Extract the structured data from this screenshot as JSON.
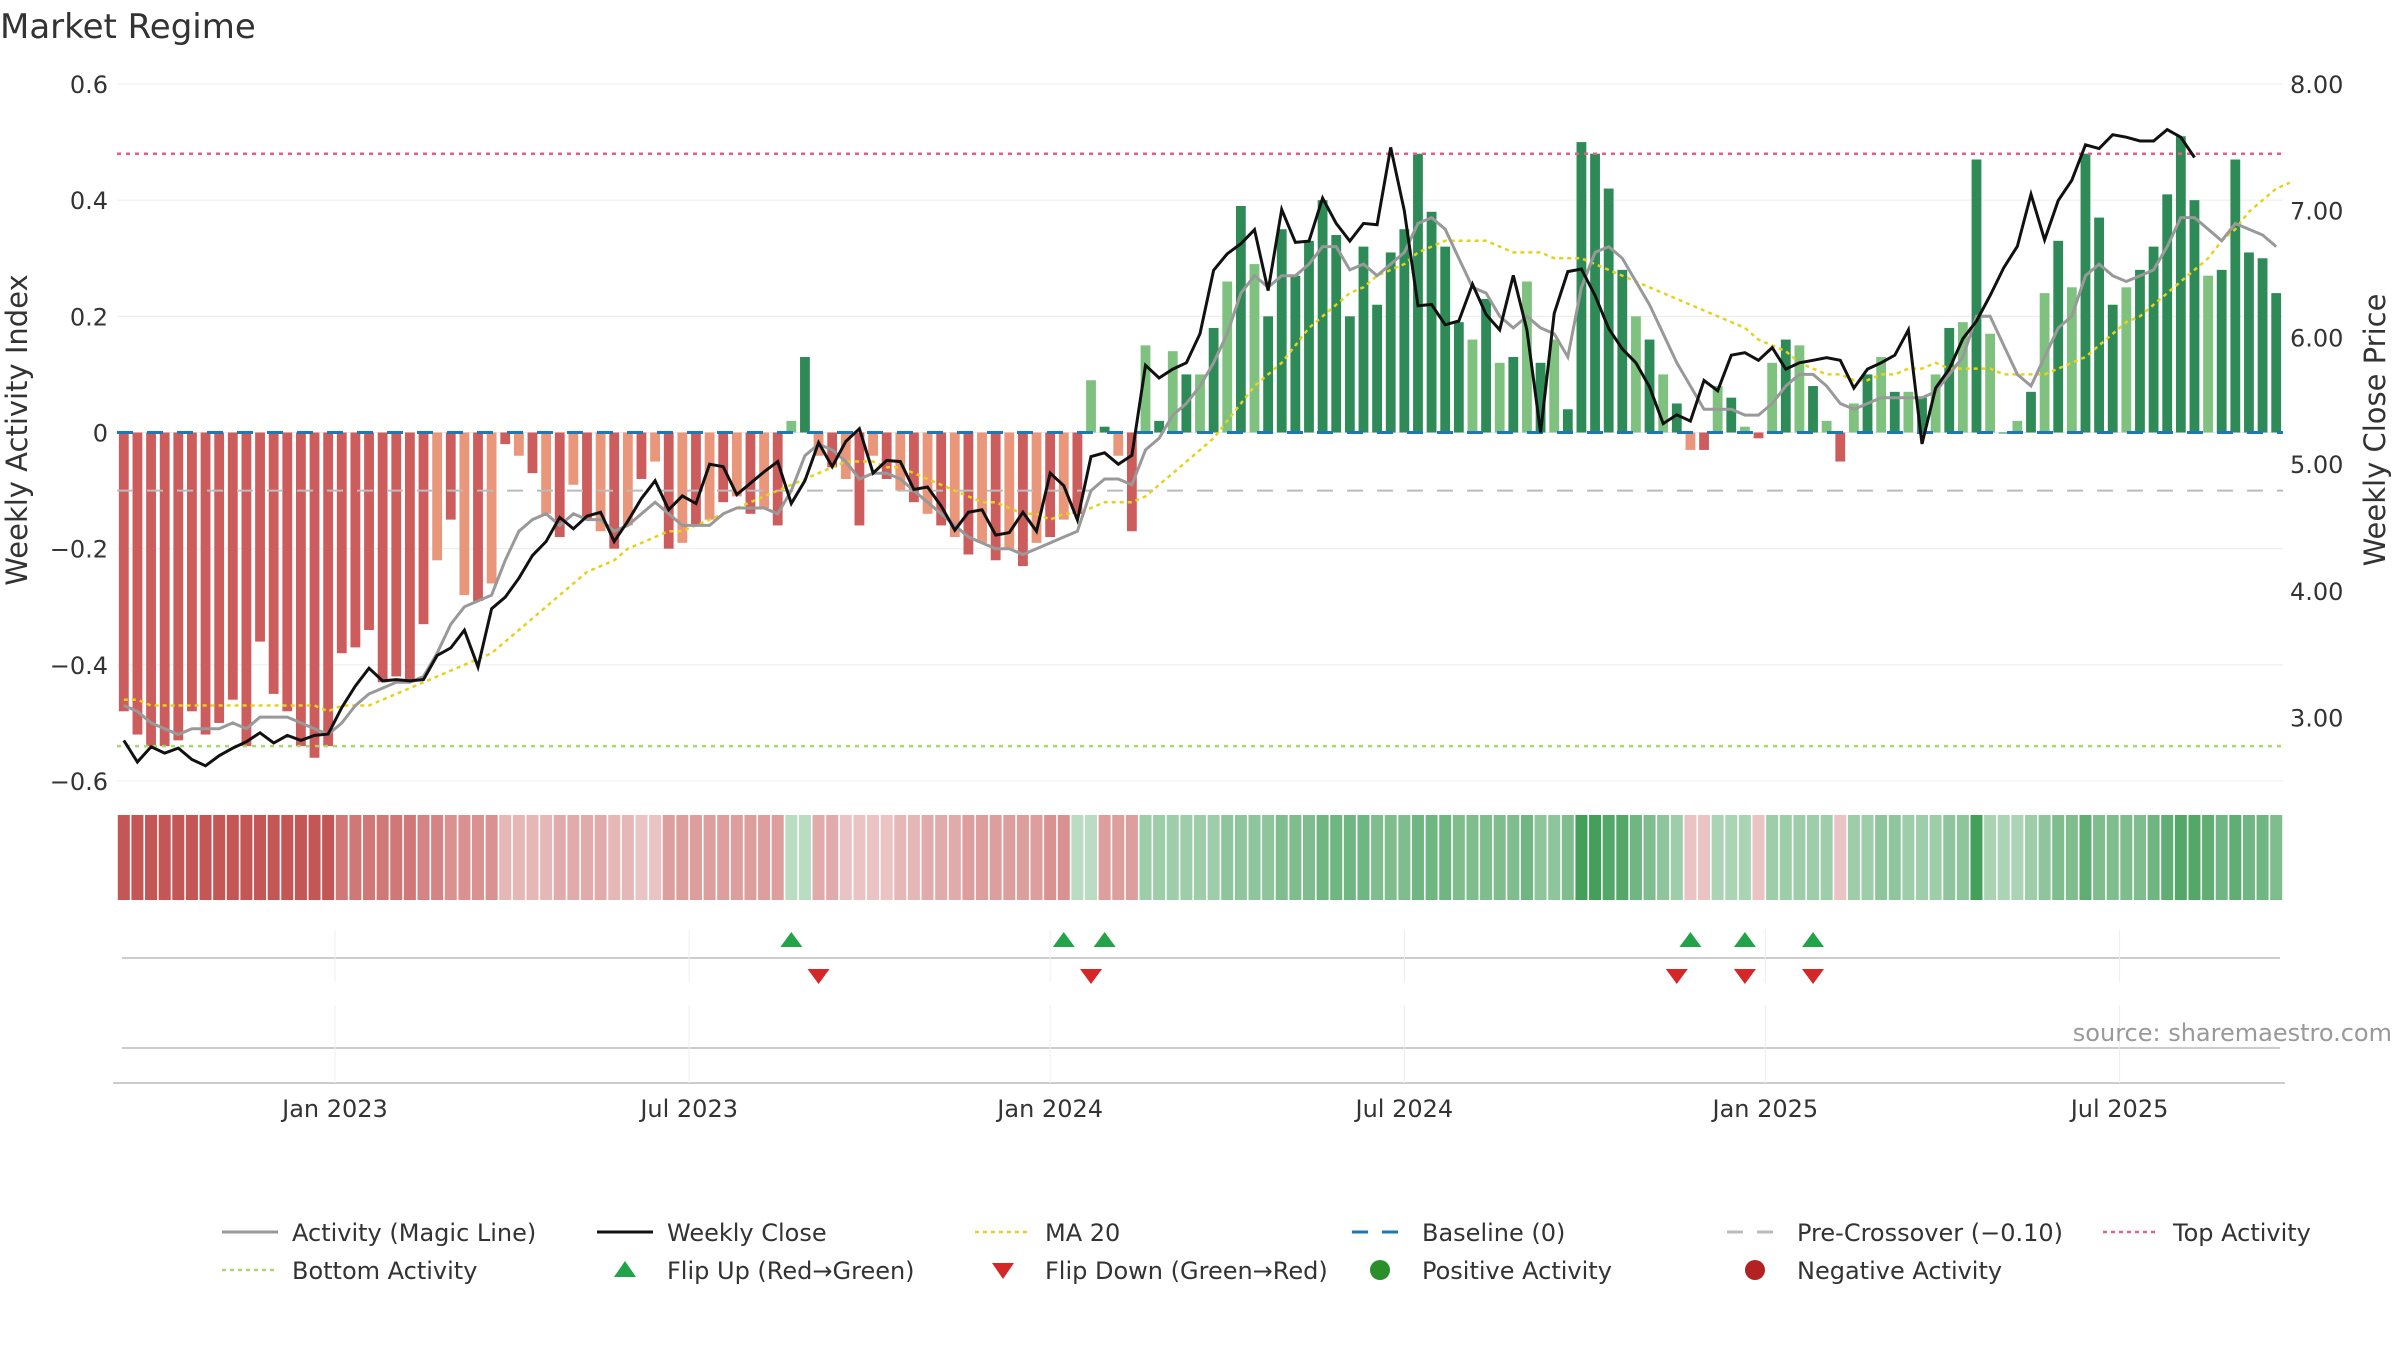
{
  "chart_data": {
    "type": "bar",
    "title": "Market Regime",
    "ylabel": "Weekly Activity Index",
    "y2label": "Weekly Close Price",
    "ylim": [
      -0.6,
      0.6
    ],
    "y2lim": [
      2.5,
      8.0
    ],
    "y_ticks": [
      {
        "v": 0.6,
        "label": "0.6"
      },
      {
        "v": 0.4,
        "label": "0.4"
      },
      {
        "v": 0.2,
        "label": "0.2"
      },
      {
        "v": 0,
        "label": "0"
      },
      {
        "v": -0.2,
        "label": "−0.2"
      },
      {
        "v": -0.4,
        "label": "−0.4"
      },
      {
        "v": -0.6,
        "label": "−0.6"
      }
    ],
    "y2_ticks": [
      {
        "v": 8,
        "label": "8.00"
      },
      {
        "v": 7,
        "label": "7.00"
      },
      {
        "v": 6,
        "label": "6.00"
      },
      {
        "v": 5,
        "label": "5.00"
      },
      {
        "v": 4,
        "label": "4.00"
      },
      {
        "v": 3,
        "label": "3.00"
      }
    ],
    "x_ticks": [
      {
        "week": 15.5,
        "label": "Jan 2023"
      },
      {
        "week": 41.5,
        "label": "Jul 2023"
      },
      {
        "week": 68,
        "label": "Jan 2024"
      },
      {
        "week": 94,
        "label": "Jul 2024"
      },
      {
        "week": 120.5,
        "label": "Jan 2025"
      },
      {
        "week": 146.5,
        "label": "Jul 2025"
      }
    ],
    "activity": [
      -0.48,
      -0.52,
      -0.54,
      -0.54,
      -0.53,
      -0.48,
      -0.52,
      -0.5,
      -0.46,
      -0.54,
      -0.36,
      -0.45,
      -0.48,
      -0.54,
      -0.56,
      -0.54,
      -0.38,
      -0.37,
      -0.34,
      -0.43,
      -0.42,
      -0.43,
      -0.33,
      -0.22,
      -0.15,
      -0.28,
      -0.29,
      -0.26,
      -0.02,
      -0.04,
      -0.07,
      -0.14,
      -0.18,
      -0.09,
      -0.15,
      -0.17,
      -0.2,
      -0.16,
      -0.08,
      -0.05,
      -0.2,
      -0.19,
      -0.16,
      -0.15,
      -0.12,
      -0.11,
      -0.14,
      -0.13,
      -0.16,
      0.02,
      0.13,
      -0.04,
      -0.06,
      -0.08,
      -0.16,
      -0.04,
      -0.08,
      -0.1,
      -0.12,
      -0.14,
      -0.16,
      -0.18,
      -0.21,
      -0.19,
      -0.22,
      -0.2,
      -0.23,
      -0.19,
      -0.18,
      -0.15,
      -0.14,
      0.09,
      0.01,
      -0.04,
      -0.17,
      0.15,
      0.02,
      0.14,
      0.1,
      0.1,
      0.18,
      0.26,
      0.39,
      0.29,
      0.2,
      0.35,
      0.27,
      0.33,
      0.4,
      0.34,
      0.2,
      0.32,
      0.22,
      0.31,
      0.35,
      0.48,
      0.38,
      0.32,
      0.19,
      0.16,
      0.23,
      0.12,
      0.13,
      0.26,
      0.12,
      0.16,
      0.04,
      0.5,
      0.48,
      0.42,
      0.28,
      0.2,
      0.16,
      0.1,
      0.05,
      -0.03,
      -0.03,
      0.08,
      0.06,
      0.01,
      -0.01,
      0.12,
      0.16,
      0.15,
      0.08,
      0.02,
      -0.05,
      0.05,
      0.1,
      0.13,
      0.07,
      0.07,
      0.06,
      0.1,
      0.18,
      0.19,
      0.47,
      0.17,
      0.0,
      0.02,
      0.07,
      0.24,
      0.33,
      0.25,
      0.48,
      0.37,
      0.22,
      0.25,
      0.28,
      0.32,
      0.41,
      0.51,
      0.4,
      0.27,
      0.28,
      0.47,
      0.31,
      0.3,
      0.24
    ],
    "close": [
      2.82,
      2.65,
      2.77,
      2.72,
      2.76,
      2.67,
      2.62,
      2.7,
      2.76,
      2.81,
      2.88,
      2.8,
      2.86,
      2.82,
      2.86,
      2.87,
      3.08,
      3.25,
      3.39,
      3.29,
      3.3,
      3.29,
      3.3,
      3.49,
      3.55,
      3.69,
      3.4,
      3.86,
      3.95,
      4.1,
      4.28,
      4.39,
      4.58,
      4.49,
      4.59,
      4.62,
      4.39,
      4.55,
      4.73,
      4.87,
      4.64,
      4.75,
      4.69,
      5.0,
      4.98,
      4.76,
      4.85,
      4.94,
      5.02,
      4.69,
      4.87,
      5.17,
      4.98,
      5.18,
      5.28,
      4.93,
      5.03,
      5.02,
      4.8,
      4.82,
      4.67,
      4.48,
      4.62,
      4.64,
      4.44,
      4.46,
      4.62,
      4.47,
      4.93,
      4.83,
      4.56,
      5.06,
      5.09,
      5.0,
      5.07,
      5.78,
      5.68,
      5.75,
      5.8,
      6.03,
      6.53,
      6.66,
      6.74,
      6.85,
      6.37,
      7.01,
      6.75,
      6.76,
      7.1,
      6.9,
      6.76,
      6.9,
      6.89,
      7.5,
      7.0,
      6.25,
      6.26,
      6.1,
      6.13,
      6.42,
      6.18,
      6.06,
      6.49,
      6.06,
      5.25,
      6.19,
      6.52,
      6.54,
      6.33,
      6.07,
      5.91,
      5.8,
      5.61,
      5.32,
      5.39,
      5.34,
      5.66,
      5.58,
      5.86,
      5.88,
      5.82,
      5.92,
      5.75,
      5.8,
      5.82,
      5.84,
      5.82,
      5.6,
      5.75,
      5.8,
      5.86,
      6.06,
      5.16,
      5.6,
      5.75,
      5.99,
      6.13,
      6.33,
      6.55,
      6.72,
      7.13,
      6.77,
      7.08,
      7.24,
      7.52,
      7.49,
      7.6,
      7.58,
      7.55,
      7.55,
      7.64,
      7.58,
      7.42
    ],
    "magic_line": [
      -0.47,
      -0.48,
      -0.5,
      -0.51,
      -0.52,
      -0.51,
      -0.51,
      -0.51,
      -0.5,
      -0.51,
      -0.49,
      -0.49,
      -0.49,
      -0.5,
      -0.51,
      -0.52,
      -0.5,
      -0.47,
      -0.45,
      -0.44,
      -0.43,
      -0.43,
      -0.42,
      -0.38,
      -0.33,
      -0.3,
      -0.29,
      -0.28,
      -0.22,
      -0.17,
      -0.15,
      -0.14,
      -0.16,
      -0.14,
      -0.15,
      -0.15,
      -0.17,
      -0.16,
      -0.14,
      -0.12,
      -0.14,
      -0.16,
      -0.16,
      -0.16,
      -0.14,
      -0.13,
      -0.13,
      -0.13,
      -0.14,
      -0.1,
      -0.04,
      -0.02,
      -0.03,
      -0.05,
      -0.08,
      -0.07,
      -0.07,
      -0.08,
      -0.1,
      -0.12,
      -0.14,
      -0.16,
      -0.18,
      -0.19,
      -0.2,
      -0.2,
      -0.21,
      -0.2,
      -0.19,
      -0.18,
      -0.17,
      -0.1,
      -0.08,
      -0.08,
      -0.09,
      -0.03,
      -0.01,
      0.03,
      0.05,
      0.08,
      0.12,
      0.17,
      0.24,
      0.27,
      0.25,
      0.27,
      0.27,
      0.29,
      0.32,
      0.32,
      0.28,
      0.29,
      0.27,
      0.29,
      0.31,
      0.36,
      0.37,
      0.35,
      0.3,
      0.25,
      0.24,
      0.2,
      0.18,
      0.2,
      0.18,
      0.17,
      0.13,
      0.25,
      0.31,
      0.32,
      0.3,
      0.26,
      0.22,
      0.17,
      0.12,
      0.08,
      0.04,
      0.04,
      0.04,
      0.03,
      0.03,
      0.05,
      0.08,
      0.1,
      0.1,
      0.08,
      0.05,
      0.04,
      0.05,
      0.06,
      0.06,
      0.06,
      0.06,
      0.07,
      0.1,
      0.13,
      0.2,
      0.2,
      0.15,
      0.1,
      0.08,
      0.13,
      0.18,
      0.2,
      0.27,
      0.29,
      0.27,
      0.26,
      0.27,
      0.28,
      0.32,
      0.37,
      0.37,
      0.35,
      0.33,
      0.36,
      0.35,
      0.34,
      0.32
    ],
    "ma20": [
      -0.46,
      -0.46,
      -0.47,
      -0.47,
      -0.47,
      -0.47,
      -0.47,
      -0.47,
      -0.47,
      -0.47,
      -0.47,
      -0.47,
      -0.47,
      -0.47,
      -0.47,
      -0.48,
      -0.47,
      -0.47,
      -0.47,
      -0.46,
      -0.45,
      -0.44,
      -0.43,
      -0.42,
      -0.41,
      -0.4,
      -0.39,
      -0.38,
      -0.36,
      -0.34,
      -0.32,
      -0.3,
      -0.28,
      -0.26,
      -0.24,
      -0.23,
      -0.22,
      -0.2,
      -0.19,
      -0.18,
      -0.17,
      -0.17,
      -0.16,
      -0.15,
      -0.14,
      -0.13,
      -0.12,
      -0.11,
      -0.1,
      -0.09,
      -0.08,
      -0.07,
      -0.06,
      -0.05,
      -0.05,
      -0.05,
      -0.06,
      -0.06,
      -0.07,
      -0.08,
      -0.09,
      -0.1,
      -0.11,
      -0.12,
      -0.12,
      -0.13,
      -0.14,
      -0.14,
      -0.15,
      -0.14,
      -0.14,
      -0.13,
      -0.12,
      -0.12,
      -0.12,
      -0.11,
      -0.09,
      -0.07,
      -0.05,
      -0.03,
      -0.01,
      0.02,
      0.05,
      0.08,
      0.1,
      0.12,
      0.15,
      0.18,
      0.2,
      0.22,
      0.24,
      0.25,
      0.27,
      0.28,
      0.29,
      0.31,
      0.32,
      0.33,
      0.33,
      0.33,
      0.33,
      0.32,
      0.31,
      0.31,
      0.31,
      0.3,
      0.3,
      0.3,
      0.29,
      0.28,
      0.27,
      0.26,
      0.25,
      0.24,
      0.23,
      0.22,
      0.21,
      0.2,
      0.19,
      0.18,
      0.16,
      0.15,
      0.14,
      0.12,
      0.11,
      0.1,
      0.1,
      0.09,
      0.09,
      0.1,
      0.1,
      0.11,
      0.11,
      0.12,
      0.11,
      0.11,
      0.11,
      0.11,
      0.1,
      0.1,
      0.1,
      0.1,
      0.11,
      0.12,
      0.13,
      0.15,
      0.17,
      0.19,
      0.2,
      0.22,
      0.24,
      0.26,
      0.28,
      0.3,
      0.33,
      0.35,
      0.38,
      0.4,
      0.42,
      0.43
    ],
    "regime_strip": [
      -0.55,
      -0.55,
      -0.55,
      -0.55,
      -0.55,
      -0.55,
      -0.55,
      -0.55,
      -0.55,
      -0.55,
      -0.55,
      -0.55,
      -0.55,
      -0.55,
      -0.55,
      -0.55,
      -0.4,
      -0.4,
      -0.4,
      -0.4,
      -0.4,
      -0.4,
      -0.35,
      -0.35,
      -0.3,
      -0.3,
      -0.3,
      -0.3,
      -0.15,
      -0.15,
      -0.15,
      -0.15,
      -0.2,
      -0.2,
      -0.2,
      -0.2,
      -0.15,
      -0.15,
      -0.1,
      -0.1,
      -0.25,
      -0.25,
      -0.25,
      -0.25,
      -0.25,
      -0.25,
      -0.25,
      -0.25,
      -0.25,
      0.1,
      0.1,
      -0.2,
      -0.2,
      -0.1,
      -0.1,
      -0.1,
      -0.1,
      -0.15,
      -0.15,
      -0.2,
      -0.2,
      -0.2,
      -0.25,
      -0.25,
      -0.25,
      -0.25,
      -0.25,
      -0.25,
      -0.3,
      -0.3,
      0.1,
      0.1,
      -0.25,
      -0.25,
      -0.25,
      0.2,
      0.2,
      0.2,
      0.2,
      0.2,
      0.2,
      0.25,
      0.25,
      0.25,
      0.25,
      0.3,
      0.3,
      0.3,
      0.35,
      0.35,
      0.35,
      0.35,
      0.3,
      0.3,
      0.3,
      0.35,
      0.35,
      0.35,
      0.3,
      0.3,
      0.3,
      0.3,
      0.3,
      0.35,
      0.25,
      0.25,
      0.3,
      0.5,
      0.5,
      0.45,
      0.45,
      0.35,
      0.3,
      0.25,
      0.2,
      -0.1,
      -0.1,
      0.15,
      0.15,
      0.15,
      -0.1,
      0.2,
      0.2,
      0.2,
      0.2,
      0.2,
      -0.1,
      0.2,
      0.2,
      0.25,
      0.25,
      0.2,
      0.2,
      0.2,
      0.25,
      0.25,
      0.5,
      0.15,
      0.15,
      0.15,
      0.2,
      0.25,
      0.3,
      0.3,
      0.4,
      0.3,
      0.3,
      0.3,
      0.3,
      0.35,
      0.4,
      0.45,
      0.45,
      0.4,
      0.35,
      0.4,
      0.35,
      0.35,
      0.3
    ],
    "flip_up_weeks": [
      49,
      69,
      72,
      115,
      119,
      124
    ],
    "flip_down_weeks": [
      51,
      71,
      114,
      119,
      124
    ],
    "top_activity": 0.48,
    "bottom_activity": -0.54,
    "baseline": 0,
    "pre_crossover": -0.1,
    "colors": {
      "pos_strong": "#2e8b57",
      "pos_light": "#7fc27f",
      "neg_strong": "#cd5c5c",
      "neg_light": "#e9967a",
      "close": "#111111",
      "magic": "#999999",
      "ma20": "#e6d21c",
      "baseline": "#1f77b4",
      "pre": "#bbbbbb",
      "top": "#e0608a",
      "bottom": "#a6d96a",
      "flip_up": "#22a34a",
      "flip_down": "#d62728",
      "pos_dot": "#2a8f2a",
      "neg_dot": "#b22222"
    },
    "legend": [
      {
        "key": "magic",
        "label": "Activity (Magic Line)",
        "marker": "line-solid",
        "color": "#999999"
      },
      {
        "key": "close",
        "label": "Weekly Close",
        "marker": "line-solid",
        "color": "#111111"
      },
      {
        "key": "ma20",
        "label": "MA 20",
        "marker": "line-dot",
        "color": "#e6d21c"
      },
      {
        "key": "baseline",
        "label": "Baseline (0)",
        "marker": "line-dash",
        "color": "#1f77b4"
      },
      {
        "key": "pre",
        "label": "Pre-Crossover (−0.10)",
        "marker": "line-dash",
        "color": "#bbbbbb"
      },
      {
        "key": "top",
        "label": "Top Activity",
        "marker": "line-dot",
        "color": "#e0608a"
      },
      {
        "key": "bottom",
        "label": "Bottom Activity",
        "marker": "line-dot",
        "color": "#a6d96a"
      },
      {
        "key": "flip_up",
        "label": "Flip Up (Red→Green)",
        "marker": "tri-up",
        "color": "#22a34a"
      },
      {
        "key": "flip_down",
        "label": "Flip Down (Green→Red)",
        "marker": "tri-down",
        "color": "#d62728"
      },
      {
        "key": "pos_dot",
        "label": "Positive Activity",
        "marker": "dot",
        "color": "#2a8f2a"
      },
      {
        "key": "neg_dot",
        "label": "Negative Activity",
        "marker": "dot",
        "color": "#b22222"
      }
    ],
    "legend_placement": "bottom",
    "grid": true
  },
  "source": "source: sharemaestro.com"
}
